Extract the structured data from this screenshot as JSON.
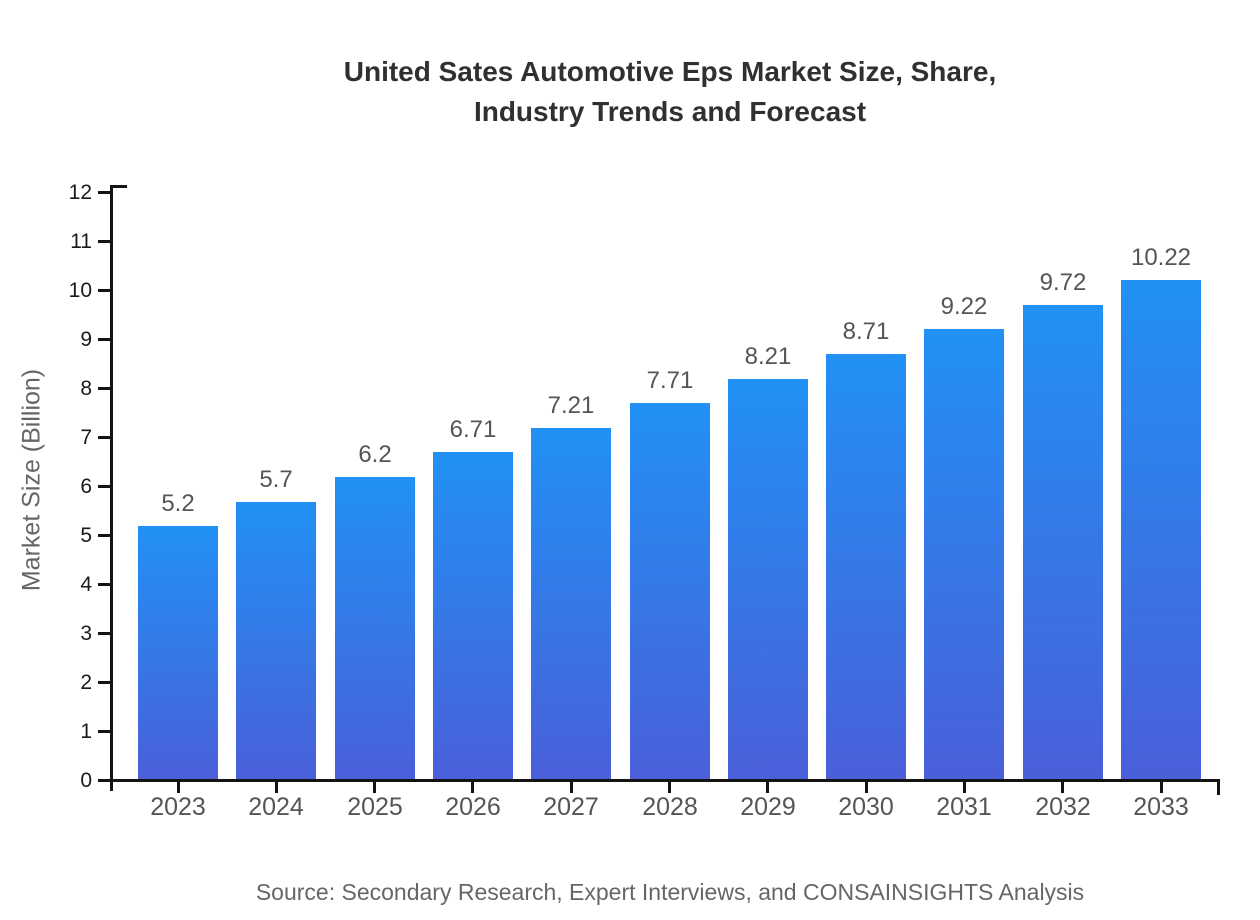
{
  "page": {
    "title_lines": [
      "United Sates Automotive Eps Market Size, Share,",
      "Industry Trends and Forecast"
    ],
    "source": "Source: Secondary Research, Expert Interviews, and CONSAINSIGHTS Analysis"
  },
  "chart_data": {
    "type": "bar",
    "title": "United Sates Automotive Eps Market Size, Share, Industry Trends and Forecast",
    "categories": [
      "2023",
      "2024",
      "2025",
      "2026",
      "2027",
      "2028",
      "2029",
      "2030",
      "2031",
      "2032",
      "2033"
    ],
    "values": [
      5.2,
      5.7,
      6.2,
      6.71,
      7.21,
      7.71,
      8.21,
      8.71,
      9.22,
      9.72,
      10.22
    ],
    "value_labels": [
      "5.2",
      "5.7",
      "6.2",
      "6.71",
      "7.21",
      "7.71",
      "8.21",
      "8.71",
      "9.22",
      "9.72",
      "10.22"
    ],
    "xlabel": "",
    "ylabel": "Market Size (Billion)",
    "ylim": [
      0,
      12
    ],
    "ytick_step": 1,
    "grid": false,
    "legend": false,
    "bar_gradient_top": "#2191F4",
    "bar_gradient_bottom": "#4A5FD9",
    "colors": {
      "axis": "#141414",
      "ytick_label": "#1a1a1a",
      "xtick_label": "#555555",
      "value_label": "#555555",
      "ylabel": "#666666",
      "title": "#303030",
      "source": "#666666"
    }
  }
}
